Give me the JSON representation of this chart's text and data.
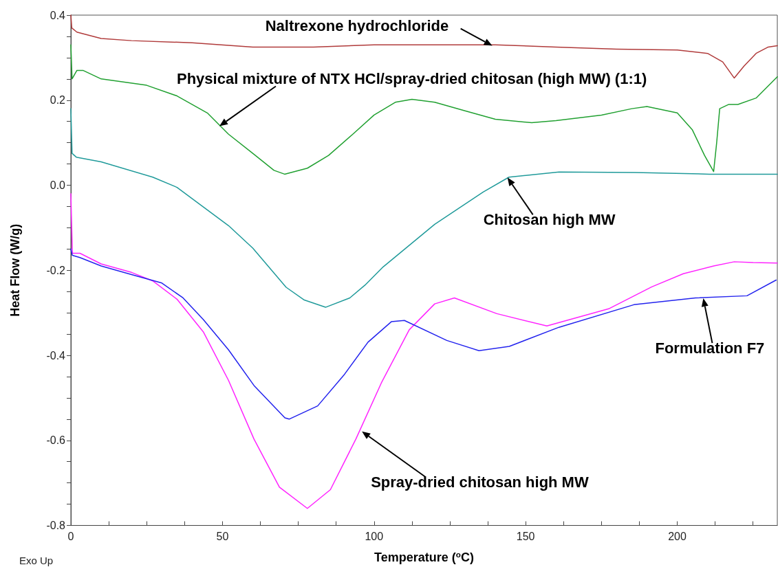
{
  "chart_data": {
    "type": "line",
    "xlabel": "Temperature ($^{o}$C)",
    "ylabel": "Heat Flow (W/g)",
    "xlim": [
      0,
      233
    ],
    "ylim": [
      -0.8,
      0.4
    ],
    "xticks": [
      0,
      {
        "value": 12.5,
        "label": null
      },
      {
        "value": 25,
        "label": null
      },
      {
        "value": 37.5,
        "label": null
      },
      50,
      {
        "value": 62.5,
        "label": null
      },
      {
        "value": 75,
        "label": null
      },
      {
        "value": 87.5,
        "label": null
      },
      100,
      {
        "value": 112.5,
        "label": null
      },
      {
        "value": 125,
        "label": null
      },
      {
        "value": 137.5,
        "label": null
      },
      150,
      {
        "value": 162.5,
        "label": null
      },
      {
        "value": 175,
        "label": null
      },
      {
        "value": 187.5,
        "label": null
      },
      200,
      {
        "value": 212.5,
        "label": null
      },
      {
        "value": 225,
        "label": null
      }
    ],
    "yticks": [
      -0.8,
      {
        "value": -0.75,
        "label": null
      },
      {
        "value": -0.7,
        "label": null
      },
      {
        "value": -0.65,
        "label": null
      },
      -0.6,
      {
        "value": -0.55,
        "label": null
      },
      {
        "value": -0.5,
        "label": null
      },
      {
        "value": -0.45,
        "label": null
      },
      -0.4,
      {
        "value": -0.35,
        "label": null
      },
      {
        "value": -0.3,
        "label": null
      },
      {
        "value": -0.25,
        "label": null
      },
      -0.2,
      {
        "value": -0.15,
        "label": null
      },
      {
        "value": -0.1,
        "label": null
      },
      {
        "value": -0.05,
        "label": null
      },
      {
        "value": 0,
        "label": "0.0"
      },
      {
        "value": 0.05,
        "label": null
      },
      {
        "value": 0.1,
        "label": null
      },
      {
        "value": 0.15,
        "label": null
      },
      0.2,
      {
        "value": 0.25,
        "label": null
      },
      {
        "value": 0.3,
        "label": null
      },
      {
        "value": 0.35,
        "label": null
      },
      0.4
    ],
    "grid": false,
    "line_style": "solid",
    "marker": "none",
    "series": [
      {
        "color": "#b03a3a",
        "x": [
          0,
          0.3,
          2,
          10,
          20,
          40,
          60,
          80,
          100,
          140,
          160,
          180,
          200,
          210,
          215,
          218.8,
          222,
          226,
          230,
          233
        ],
        "values": [
          0.4,
          0.37,
          0.36,
          0.345,
          0.34,
          0.335,
          0.325,
          0.325,
          0.33,
          0.33,
          0.325,
          0.32,
          0.318,
          0.31,
          0.29,
          0.252,
          0.28,
          0.31,
          0.325,
          0.328
        ]
      },
      {
        "color": "#20a030",
        "x": [
          0,
          0.4,
          2,
          4,
          10,
          25,
          35,
          45,
          52,
          60,
          67,
          70.5,
          78,
          85,
          93,
          100,
          107,
          112.5,
          120,
          130,
          140,
          152,
          160,
          175,
          185,
          190,
          200,
          205,
          209,
          212,
          213,
          214,
          217,
          220,
          226,
          233
        ],
        "values": [
          0.33,
          0.25,
          0.27,
          0.27,
          0.25,
          0.235,
          0.21,
          0.17,
          0.12,
          0.075,
          0.035,
          0.026,
          0.04,
          0.07,
          0.12,
          0.165,
          0.195,
          0.202,
          0.195,
          0.175,
          0.155,
          0.147,
          0.152,
          0.165,
          0.18,
          0.185,
          0.17,
          0.13,
          0.07,
          0.032,
          0.1,
          0.18,
          0.19,
          0.19,
          0.205,
          0.255
        ]
      },
      {
        "color": "#1f9a9a",
        "x": [
          0,
          0.4,
          1.8,
          10,
          27,
          35,
          52,
          60,
          71,
          77,
          84,
          92,
          97,
          103,
          120,
          136,
          144.5,
          161,
          186,
          210.6,
          233
        ],
        "values": [
          0.18,
          0.075,
          0.066,
          0.055,
          0.019,
          -0.005,
          -0.095,
          -0.148,
          -0.24,
          -0.27,
          -0.287,
          -0.265,
          -0.235,
          -0.192,
          -0.092,
          -0.016,
          0.019,
          0.031,
          0.03,
          0.026,
          0.026
        ]
      },
      {
        "color": "#ff22ff",
        "x": [
          0,
          0.5,
          3,
          10,
          20,
          27,
          35,
          43.7,
          52,
          60.4,
          68.8,
          78,
          85.6,
          94,
          102.4,
          111.6,
          120,
          126.5,
          140.5,
          157,
          177.6,
          191.6,
          202,
          212,
          218.8,
          225,
          233
        ],
        "values": [
          -0.02,
          -0.16,
          -0.16,
          -0.185,
          -0.205,
          -0.225,
          -0.268,
          -0.345,
          -0.459,
          -0.597,
          -0.71,
          -0.76,
          -0.716,
          -0.597,
          -0.465,
          -0.34,
          -0.279,
          -0.265,
          -0.302,
          -0.331,
          -0.29,
          -0.239,
          -0.208,
          -0.19,
          -0.18,
          -0.182,
          -0.183
        ]
      },
      {
        "color": "#2222ee",
        "x": [
          0,
          0.5,
          3,
          10,
          15,
          20,
          30,
          37,
          43.7,
          52,
          60.4,
          70.6,
          72,
          81.4,
          90,
          98,
          105.7,
          110,
          124,
          134.6,
          144.6,
          161,
          185.7,
          206,
          223,
          232.6
        ],
        "values": [
          -0.15,
          -0.165,
          -0.17,
          -0.19,
          -0.2,
          -0.21,
          -0.23,
          -0.265,
          -0.316,
          -0.387,
          -0.471,
          -0.547,
          -0.55,
          -0.519,
          -0.447,
          -0.369,
          -0.321,
          -0.318,
          -0.365,
          -0.389,
          -0.379,
          -0.334,
          -0.281,
          -0.265,
          -0.26,
          -0.223
        ]
      }
    ],
    "annotations": [
      "Exo Up",
      {
        "text": "Naltrexone hydrochloride",
        "x": 139,
        "y": 0.328
      },
      {
        "text": "Physical mixture of NTX HCl/spray-dried chitosan (high MW) (1:1)",
        "x": 49,
        "y": 0.139
      },
      {
        "text": "Chitosan high MW",
        "x": 144,
        "y": 0.018
      },
      {
        "text": "Spray-dried chitosan high MW",
        "x": 96,
        "y": -0.579
      },
      {
        "text": "Formulation F7",
        "x": 208.6,
        "y": -0.266
      }
    ]
  }
}
